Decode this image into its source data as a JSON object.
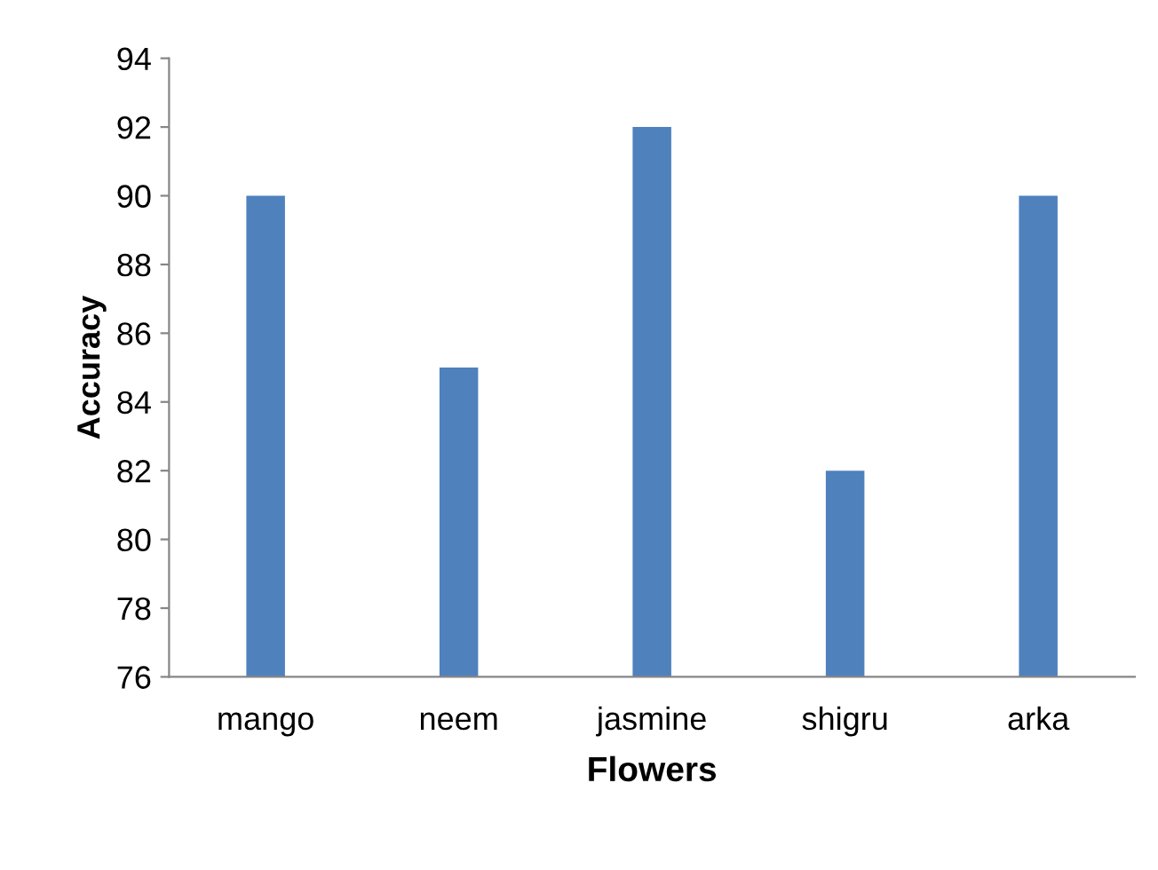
{
  "chart_data": {
    "type": "bar",
    "xlabel": "Flowers",
    "ylabel": "Accuracy",
    "categories": [
      "mango",
      "neem",
      "jasmine",
      "shigru",
      "arka"
    ],
    "values": [
      90,
      85,
      92,
      82,
      90
    ],
    "color": "#4f81bd",
    "ylim": [
      76,
      94
    ],
    "yticks": [
      76,
      78,
      80,
      82,
      84,
      86,
      88,
      90,
      92,
      94
    ],
    "grid": false,
    "legend": false
  }
}
